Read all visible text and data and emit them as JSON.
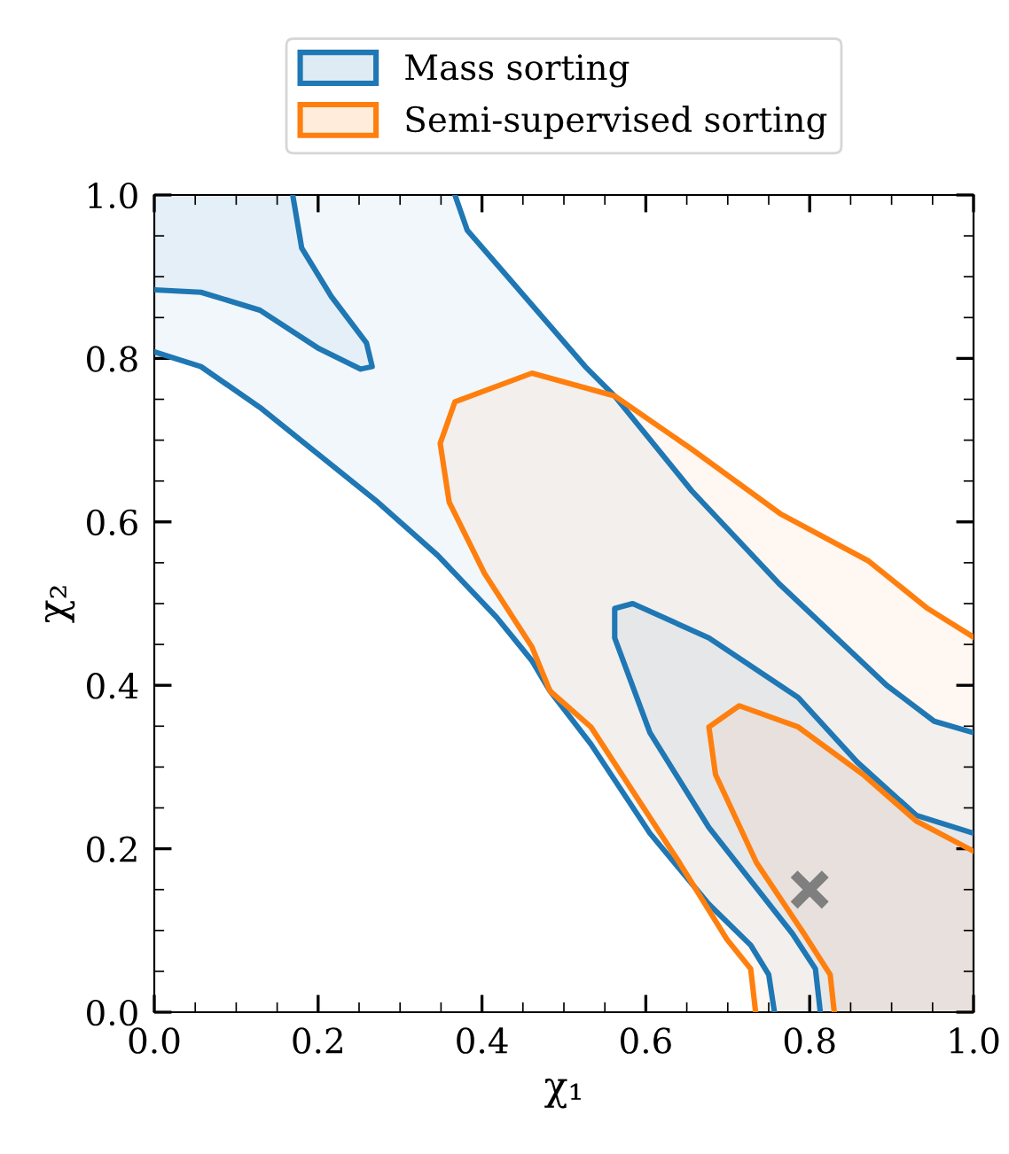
{
  "chart_data": {
    "type": "area",
    "xlabel": "χ₁",
    "ylabel": "χ₂",
    "xlim": [
      0,
      1
    ],
    "ylim": [
      0,
      1
    ],
    "xticks": [
      {
        "value": 0,
        "label": "0.0"
      },
      0.2,
      0.4,
      0.6,
      0.8,
      {
        "value": 1,
        "label": "1.0"
      }
    ],
    "yticks": [
      {
        "value": 0,
        "label": "0.0"
      },
      0.2,
      0.4,
      0.6,
      0.8,
      {
        "value": 1,
        "label": "1.0"
      }
    ],
    "grid": false,
    "legend": "top",
    "line_style": "solid",
    "marker": "none",
    "series": [
      {
        "name": "Mass sorting",
        "color": "#1f77b4",
        "x": [
          0,
          0.057,
          0.129,
          0.201,
          0.273,
          0.346,
          0.418,
          0.461,
          0.483,
          0.533,
          0.605,
          0.677,
          0.728,
          0.75,
          0.757,
          1.0,
          1.0,
          0.952,
          0.894,
          0.764,
          0.656,
          0.562,
          0.526,
          0.432,
          0.382,
          0.367,
          0
        ],
        "values": [
          0.808,
          0.79,
          0.74,
          0.682,
          0.624,
          0.559,
          0.483,
          0.43,
          0.393,
          0.328,
          0.219,
          0.132,
          0.082,
          0.046,
          0,
          0,
          0.342,
          0.356,
          0.4,
          0.523,
          0.638,
          0.754,
          0.79,
          0.899,
          0.957,
          1.0,
          1.0
        ]
      },
      {
        "color": "#1f77b4",
        "x": [
          0,
          0.057,
          0.129,
          0.201,
          0.252,
          0.266,
          0.259,
          0.216,
          0.18,
          0.169,
          0
        ],
        "values": [
          0.884,
          0.881,
          0.859,
          0.812,
          0.787,
          0.79,
          0.819,
          0.876,
          0.935,
          1.0,
          1.0
        ]
      },
      {
        "color": "#1f77b4",
        "x": [
          0.813,
          0.807,
          0.779,
          0.677,
          0.605,
          0.562,
          0.562,
          0.584,
          0.677,
          0.786,
          0.858,
          0.93,
          1.0,
          1.0
        ],
        "values": [
          0,
          0.053,
          0.096,
          0.226,
          0.342,
          0.458,
          0.494,
          0.5,
          0.458,
          0.385,
          0.306,
          0.241,
          0.219,
          0
        ]
      },
      {
        "name": "Semi-supervised sorting",
        "color": "#ff7f0e",
        "x": [
          0.734,
          0.728,
          0.699,
          0.641,
          0.533,
          0.483,
          0.461,
          0.403,
          0.36,
          0.349,
          0.367,
          0.461,
          0.562,
          0.656,
          0.764,
          0.872,
          0.944,
          1.0,
          1.0
        ],
        "values": [
          0,
          0.053,
          0.089,
          0.183,
          0.349,
          0.393,
          0.447,
          0.537,
          0.624,
          0.696,
          0.747,
          0.782,
          0.754,
          0.689,
          0.61,
          0.552,
          0.494,
          0.459,
          0
        ]
      },
      {
        "color": "#ff7f0e",
        "x": [
          0.83,
          0.825,
          0.793,
          0.735,
          0.685,
          0.677,
          0.714,
          0.786,
          0.865,
          0.93,
          1.0,
          1.0
        ],
        "values": [
          0,
          0.046,
          0.096,
          0.183,
          0.291,
          0.349,
          0.375,
          0.349,
          0.291,
          0.234,
          0.197,
          0
        ]
      },
      {
        "type": "scatter",
        "marker": "cross",
        "color": "#7f7f7f",
        "x": [
          0.8
        ],
        "values": [
          0.15
        ]
      }
    ]
  }
}
